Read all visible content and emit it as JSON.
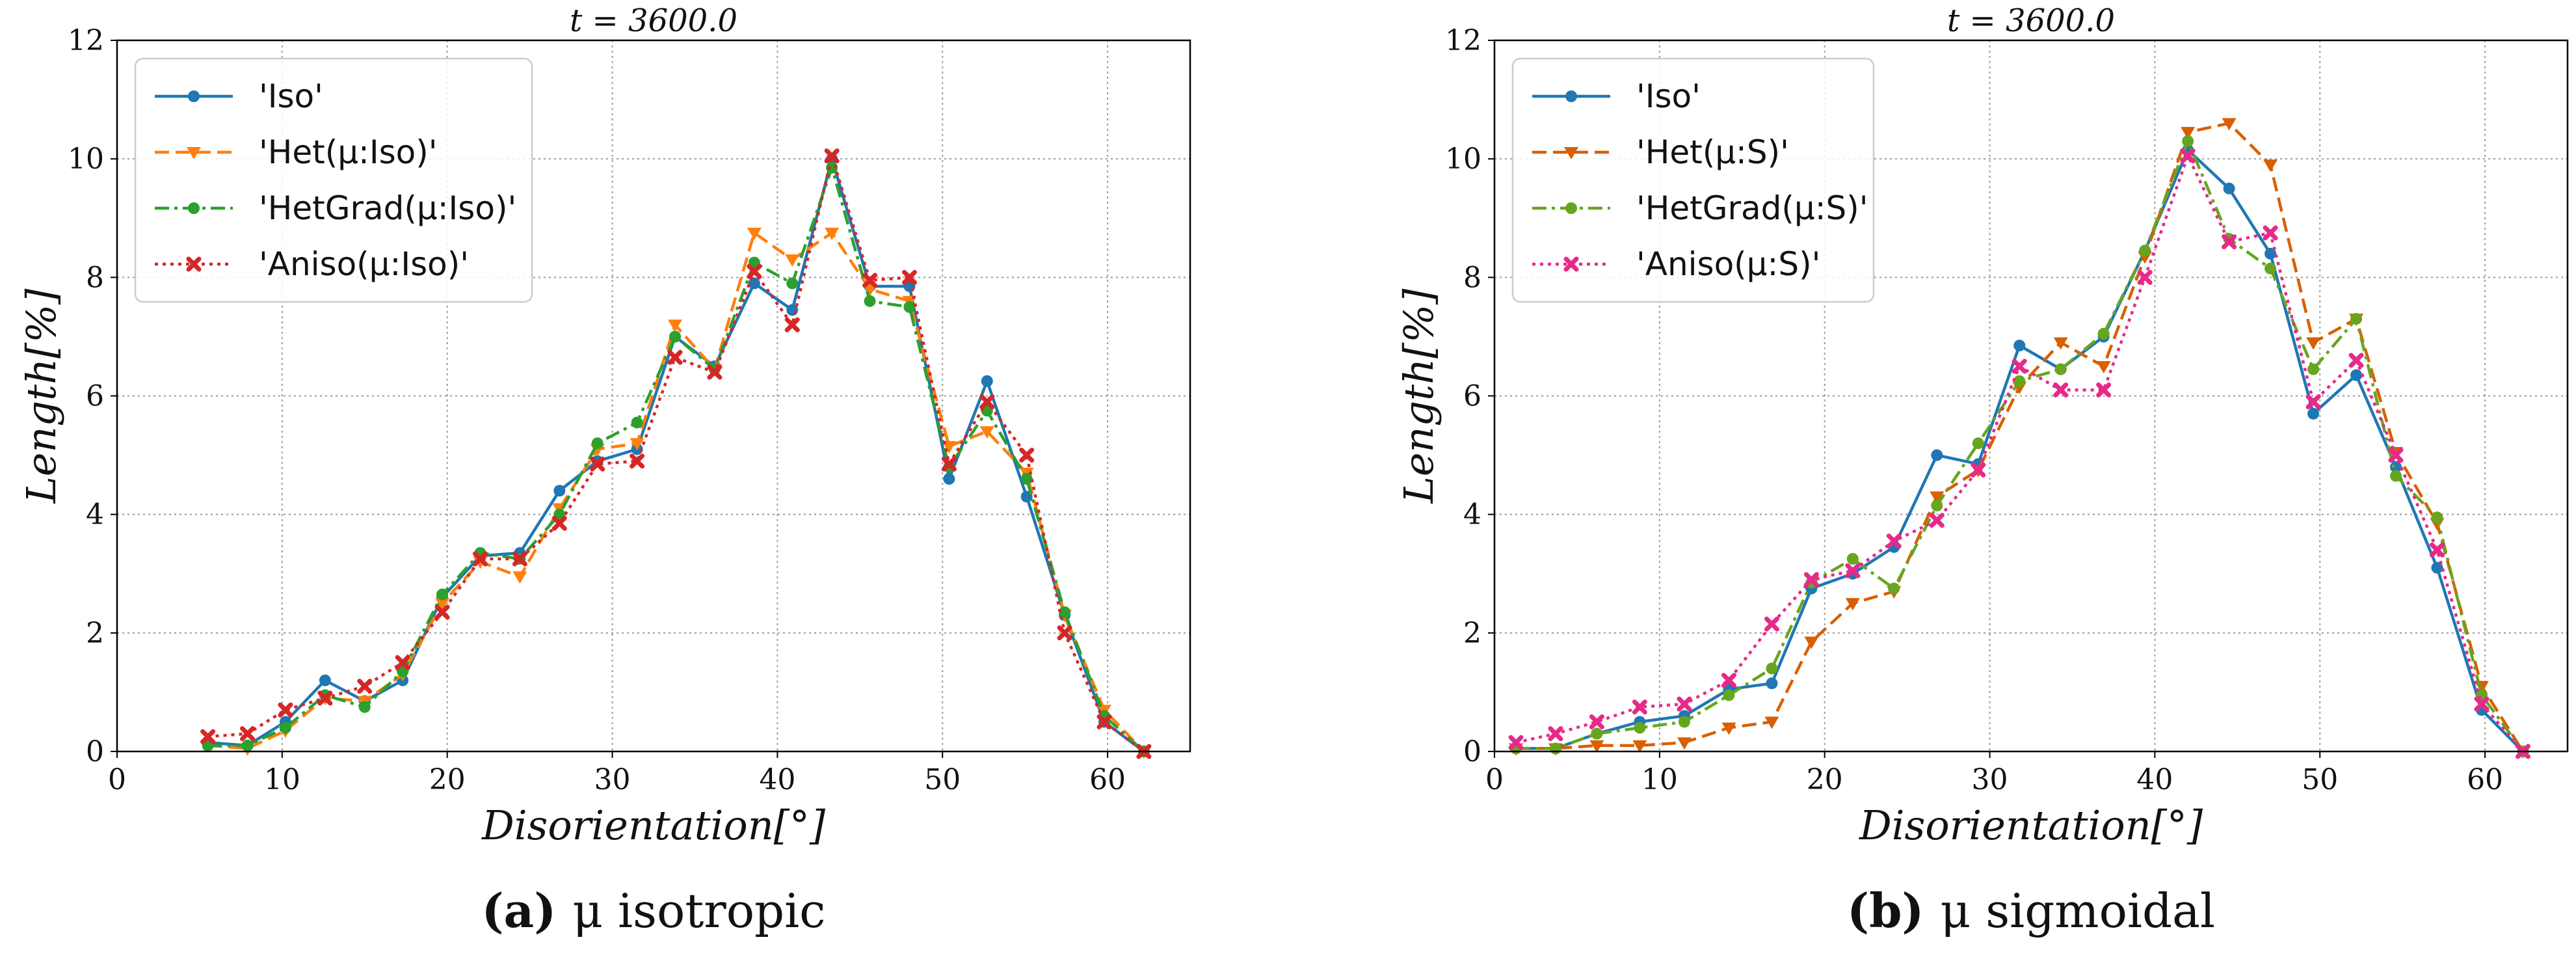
{
  "chart_data": [
    {
      "type": "line",
      "title": "t = 3600.0",
      "xlabel": "Disorientation[°]",
      "ylabel": "Length[%]",
      "xlim": [
        0,
        65
      ],
      "ylim": [
        0,
        12
      ],
      "xticks": [
        "0",
        "10",
        "20",
        "30",
        "40",
        "50",
        "60"
      ],
      "yticks": [
        "0",
        "2",
        "4",
        "6",
        "8",
        "10",
        "12"
      ],
      "grid": true,
      "legend_position": "top-left",
      "caption": {
        "label": "(a)",
        "text": "μ isotropic"
      },
      "series": [
        {
          "name": "'Iso'",
          "color": "#1f77b4",
          "style": "solid",
          "marker": "circle",
          "x": [
            5.5,
            7.9,
            10.2,
            12.6,
            15.0,
            17.3,
            19.7,
            22.0,
            24.4,
            26.8,
            29.1,
            31.5,
            33.8,
            36.2,
            38.6,
            40.9,
            43.3,
            45.6,
            48.0,
            50.4,
            52.7,
            55.1,
            57.4,
            59.8,
            62.2
          ],
          "y": [
            0.15,
            0.1,
            0.5,
            1.2,
            0.85,
            1.2,
            2.6,
            3.3,
            3.35,
            4.4,
            4.9,
            5.1,
            7.0,
            6.5,
            7.9,
            7.45,
            10.0,
            7.85,
            7.85,
            4.6,
            6.25,
            4.3,
            2.3,
            0.5,
            0.0
          ]
        },
        {
          "name": "'Het(μ:Iso)'",
          "color": "#ff7f0e",
          "style": "dashed",
          "marker": "triangle-down",
          "x": [
            5.5,
            7.9,
            10.2,
            12.6,
            15.0,
            17.3,
            19.7,
            22.0,
            24.4,
            26.8,
            29.1,
            31.5,
            33.8,
            36.2,
            38.6,
            40.9,
            43.3,
            45.6,
            48.0,
            50.4,
            52.7,
            55.1,
            57.4,
            59.8,
            62.2
          ],
          "y": [
            0.1,
            0.05,
            0.35,
            0.9,
            0.85,
            1.3,
            2.5,
            3.2,
            2.95,
            4.1,
            5.1,
            5.2,
            7.2,
            6.45,
            8.75,
            8.3,
            8.75,
            7.8,
            7.6,
            5.15,
            5.4,
            4.7,
            2.3,
            0.7,
            0.0
          ]
        },
        {
          "name": "'HetGrad(μ:Iso)'",
          "color": "#2ca02c",
          "style": "dashdot",
          "marker": "circle",
          "x": [
            5.5,
            7.9,
            10.2,
            12.6,
            15.0,
            17.3,
            19.7,
            22.0,
            24.4,
            26.8,
            29.1,
            31.5,
            33.8,
            36.2,
            38.6,
            40.9,
            43.3,
            45.6,
            48.0,
            50.4,
            52.7,
            55.1,
            57.4,
            59.8,
            62.2
          ],
          "y": [
            0.1,
            0.1,
            0.4,
            0.95,
            0.75,
            1.35,
            2.65,
            3.35,
            3.25,
            4.0,
            5.2,
            5.55,
            7.0,
            6.45,
            8.25,
            7.9,
            9.85,
            7.6,
            7.5,
            4.8,
            5.75,
            4.6,
            2.35,
            0.6,
            0.0
          ]
        },
        {
          "name": "'Aniso(μ:Iso)'",
          "color": "#d62728",
          "style": "dotted",
          "marker": "x",
          "x": [
            5.5,
            7.9,
            10.2,
            12.6,
            15.0,
            17.3,
            19.7,
            22.0,
            24.4,
            26.8,
            29.1,
            31.5,
            33.8,
            36.2,
            38.6,
            40.9,
            43.3,
            45.6,
            48.0,
            50.4,
            52.7,
            55.1,
            57.4,
            59.8,
            62.2
          ],
          "y": [
            0.25,
            0.3,
            0.7,
            0.9,
            1.1,
            1.5,
            2.35,
            3.25,
            3.25,
            3.85,
            4.85,
            4.9,
            6.65,
            6.4,
            8.1,
            7.2,
            10.05,
            7.95,
            8.0,
            4.85,
            5.9,
            5.0,
            2.0,
            0.5,
            0.0
          ]
        }
      ]
    },
    {
      "type": "line",
      "title": "t = 3600.0",
      "xlabel": "Disorientation[°]",
      "ylabel": "Length[%]",
      "xlim": [
        0,
        65
      ],
      "ylim": [
        0,
        12
      ],
      "xticks": [
        "0",
        "10",
        "20",
        "30",
        "40",
        "50",
        "60"
      ],
      "yticks": [
        "0",
        "2",
        "4",
        "6",
        "8",
        "10",
        "12"
      ],
      "grid": true,
      "legend_position": "top-left",
      "caption": {
        "label": "(b)",
        "text": "μ sigmoidal"
      },
      "series": [
        {
          "name": "'Iso'",
          "color": "#1f77b4",
          "style": "solid",
          "marker": "circle",
          "x": [
            1.3,
            3.7,
            6.2,
            8.8,
            11.5,
            14.2,
            16.8,
            19.2,
            21.7,
            24.2,
            26.8,
            29.3,
            31.8,
            34.3,
            36.9,
            39.4,
            42.0,
            44.5,
            47.0,
            49.6,
            52.2,
            54.6,
            57.1,
            59.8,
            62.3
          ],
          "y": [
            0.05,
            0.05,
            0.3,
            0.5,
            0.6,
            1.05,
            1.15,
            2.75,
            3.0,
            3.45,
            5.0,
            4.85,
            6.85,
            6.45,
            7.0,
            8.45,
            10.15,
            9.5,
            8.4,
            5.7,
            6.35,
            4.8,
            3.1,
            0.7,
            0.0
          ]
        },
        {
          "name": "'Het(μ:S)'",
          "color": "#d95f02",
          "style": "dashed",
          "marker": "triangle-down",
          "x": [
            1.3,
            3.7,
            6.2,
            8.8,
            11.5,
            14.2,
            16.8,
            19.2,
            21.7,
            24.2,
            26.8,
            29.3,
            31.8,
            34.3,
            36.9,
            39.4,
            42.0,
            44.5,
            47.0,
            49.6,
            52.2,
            54.6,
            57.1,
            59.8,
            62.3
          ],
          "y": [
            0.05,
            0.05,
            0.1,
            0.1,
            0.15,
            0.4,
            0.5,
            1.85,
            2.5,
            2.7,
            4.3,
            4.75,
            6.15,
            6.9,
            6.5,
            8.35,
            10.45,
            10.6,
            9.9,
            6.9,
            7.3,
            5.05,
            3.85,
            1.1,
            0.0
          ]
        },
        {
          "name": "'HetGrad(μ:S)'",
          "color": "#66a61e",
          "style": "dashdot",
          "marker": "circle",
          "x": [
            1.3,
            3.7,
            6.2,
            8.8,
            11.5,
            14.2,
            16.8,
            19.2,
            21.7,
            24.2,
            26.8,
            29.3,
            31.8,
            34.3,
            36.9,
            39.4,
            42.0,
            44.5,
            47.0,
            49.6,
            52.2,
            54.6,
            57.1,
            59.8,
            62.3
          ],
          "y": [
            0.05,
            0.05,
            0.3,
            0.4,
            0.5,
            0.95,
            1.4,
            2.85,
            3.25,
            2.75,
            4.15,
            5.2,
            6.25,
            6.45,
            7.05,
            8.45,
            10.3,
            8.65,
            8.15,
            6.45,
            7.3,
            4.65,
            3.95,
            0.95,
            0.0
          ]
        },
        {
          "name": "'Aniso(μ:S)'",
          "color": "#e7298a",
          "style": "dotted",
          "marker": "x",
          "x": [
            1.3,
            3.7,
            6.2,
            8.8,
            11.5,
            14.2,
            16.8,
            19.2,
            21.7,
            24.2,
            26.8,
            29.3,
            31.8,
            34.3,
            36.9,
            39.4,
            42.0,
            44.5,
            47.0,
            49.6,
            52.2,
            54.6,
            57.1,
            59.8,
            62.3
          ],
          "y": [
            0.15,
            0.3,
            0.5,
            0.75,
            0.8,
            1.2,
            2.15,
            2.9,
            3.05,
            3.55,
            3.9,
            4.75,
            6.5,
            6.1,
            6.1,
            8.0,
            10.05,
            8.6,
            8.75,
            5.9,
            6.6,
            5.0,
            3.4,
            0.8,
            0.0
          ]
        }
      ]
    }
  ]
}
